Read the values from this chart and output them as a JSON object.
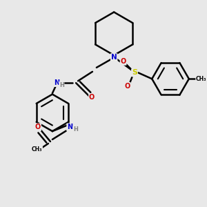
{
  "background_color": "#e8e8e8",
  "atom_colors": {
    "N": "#0000cc",
    "O": "#cc0000",
    "S": "#cccc00",
    "C": "#000000",
    "H": "#808080"
  },
  "bond_color": "#000000",
  "bond_width": 1.8,
  "fig_bg": "#e8e8e8"
}
